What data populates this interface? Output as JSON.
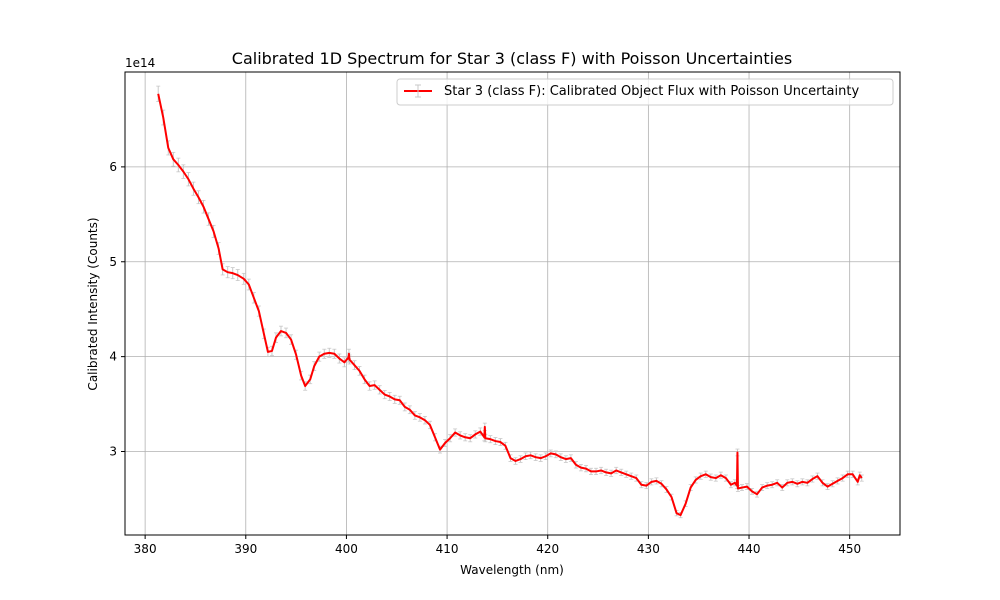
{
  "chart_data": {
    "type": "line",
    "title": "Calibrated 1D Spectrum for Star 3 (class F) with Poisson Uncertainties",
    "xlabel": "Wavelength (nm)",
    "ylabel": "Calibrated Intensity (Counts)",
    "y_offset_label": "1e14",
    "xlim": [
      378,
      455
    ],
    "ylim": [
      2.12,
      7.0
    ],
    "x_ticks": [
      380,
      390,
      400,
      410,
      420,
      430,
      440,
      450
    ],
    "y_ticks": [
      3,
      4,
      5,
      6
    ],
    "grid": true,
    "legend_position": "top-right",
    "series": [
      {
        "name": "Star 3 (class F): Calibrated Object Flux with Poisson Uncertainty",
        "color": "#ff0000",
        "errorbar_color": "#c8c8c8",
        "error_fraction": 0.012,
        "points": [
          [
            381.3,
            6.77
          ],
          [
            381.8,
            6.52
          ],
          [
            382.3,
            6.2
          ],
          [
            382.8,
            6.08
          ],
          [
            383.3,
            6.02
          ],
          [
            383.8,
            5.95
          ],
          [
            384.3,
            5.87
          ],
          [
            384.8,
            5.77
          ],
          [
            385.3,
            5.68
          ],
          [
            385.8,
            5.58
          ],
          [
            386.3,
            5.45
          ],
          [
            386.8,
            5.32
          ],
          [
            387.3,
            5.14
          ],
          [
            387.7,
            4.92
          ],
          [
            388.2,
            4.89
          ],
          [
            388.7,
            4.88
          ],
          [
            389.2,
            4.86
          ],
          [
            389.8,
            4.82
          ],
          [
            390.3,
            4.76
          ],
          [
            390.8,
            4.62
          ],
          [
            391.3,
            4.48
          ],
          [
            391.8,
            4.24
          ],
          [
            392.2,
            4.05
          ],
          [
            392.6,
            4.06
          ],
          [
            393.0,
            4.2
          ],
          [
            393.5,
            4.27
          ],
          [
            394.0,
            4.25
          ],
          [
            394.5,
            4.18
          ],
          [
            395.0,
            4.02
          ],
          [
            395.5,
            3.8
          ],
          [
            395.9,
            3.69
          ],
          [
            396.4,
            3.76
          ],
          [
            396.8,
            3.9
          ],
          [
            397.3,
            4.0
          ],
          [
            397.8,
            4.03
          ],
          [
            398.3,
            4.04
          ],
          [
            398.8,
            4.03
          ],
          [
            399.3,
            3.98
          ],
          [
            399.8,
            3.94
          ],
          [
            400.2,
            3.99
          ],
          [
            400.25,
            4.03
          ],
          [
            400.3,
            3.97
          ],
          [
            400.8,
            3.91
          ],
          [
            401.3,
            3.85
          ],
          [
            401.8,
            3.76
          ],
          [
            402.3,
            3.69
          ],
          [
            402.8,
            3.7
          ],
          [
            403.3,
            3.65
          ],
          [
            403.8,
            3.6
          ],
          [
            404.3,
            3.58
          ],
          [
            404.8,
            3.55
          ],
          [
            405.3,
            3.54
          ],
          [
            405.8,
            3.47
          ],
          [
            406.3,
            3.44
          ],
          [
            406.8,
            3.38
          ],
          [
            407.3,
            3.36
          ],
          [
            407.8,
            3.33
          ],
          [
            408.3,
            3.28
          ],
          [
            408.8,
            3.15
          ],
          [
            409.3,
            3.02
          ],
          [
            409.8,
            3.09
          ],
          [
            410.3,
            3.14
          ],
          [
            410.8,
            3.2
          ],
          [
            411.3,
            3.17
          ],
          [
            411.8,
            3.15
          ],
          [
            412.3,
            3.14
          ],
          [
            412.8,
            3.18
          ],
          [
            413.3,
            3.21
          ],
          [
            413.7,
            3.15
          ],
          [
            413.75,
            3.26
          ],
          [
            413.8,
            3.14
          ],
          [
            414.3,
            3.13
          ],
          [
            414.8,
            3.11
          ],
          [
            415.3,
            3.1
          ],
          [
            415.8,
            3.06
          ],
          [
            416.3,
            2.93
          ],
          [
            416.8,
            2.9
          ],
          [
            417.3,
            2.92
          ],
          [
            417.8,
            2.95
          ],
          [
            418.3,
            2.96
          ],
          [
            418.8,
            2.94
          ],
          [
            419.3,
            2.93
          ],
          [
            419.8,
            2.95
          ],
          [
            420.3,
            2.98
          ],
          [
            420.8,
            2.97
          ],
          [
            421.3,
            2.94
          ],
          [
            421.8,
            2.92
          ],
          [
            422.3,
            2.93
          ],
          [
            422.8,
            2.86
          ],
          [
            423.3,
            2.83
          ],
          [
            423.8,
            2.82
          ],
          [
            424.3,
            2.79
          ],
          [
            424.8,
            2.79
          ],
          [
            425.3,
            2.8
          ],
          [
            425.8,
            2.78
          ],
          [
            426.3,
            2.77
          ],
          [
            426.8,
            2.8
          ],
          [
            427.3,
            2.78
          ],
          [
            427.8,
            2.76
          ],
          [
            428.3,
            2.74
          ],
          [
            428.8,
            2.72
          ],
          [
            429.3,
            2.65
          ],
          [
            429.8,
            2.64
          ],
          [
            430.3,
            2.68
          ],
          [
            430.8,
            2.69
          ],
          [
            431.3,
            2.66
          ],
          [
            431.8,
            2.6
          ],
          [
            432.3,
            2.52
          ],
          [
            432.8,
            2.35
          ],
          [
            433.2,
            2.33
          ],
          [
            433.7,
            2.45
          ],
          [
            434.2,
            2.62
          ],
          [
            434.7,
            2.7
          ],
          [
            435.2,
            2.74
          ],
          [
            435.7,
            2.76
          ],
          [
            436.2,
            2.73
          ],
          [
            436.7,
            2.72
          ],
          [
            437.2,
            2.75
          ],
          [
            437.7,
            2.72
          ],
          [
            438.2,
            2.65
          ],
          [
            438.6,
            2.67
          ],
          [
            438.8,
            2.64
          ],
          [
            438.85,
            2.99
          ],
          [
            438.9,
            2.61
          ],
          [
            439.3,
            2.62
          ],
          [
            439.8,
            2.63
          ],
          [
            440.3,
            2.58
          ],
          [
            440.8,
            2.55
          ],
          [
            441.3,
            2.62
          ],
          [
            441.8,
            2.64
          ],
          [
            442.3,
            2.65
          ],
          [
            442.8,
            2.67
          ],
          [
            443.3,
            2.62
          ],
          [
            443.8,
            2.67
          ],
          [
            444.3,
            2.68
          ],
          [
            444.8,
            2.66
          ],
          [
            445.3,
            2.68
          ],
          [
            445.8,
            2.67
          ],
          [
            446.3,
            2.71
          ],
          [
            446.8,
            2.74
          ],
          [
            447.3,
            2.67
          ],
          [
            447.8,
            2.63
          ],
          [
            448.3,
            2.66
          ],
          [
            448.8,
            2.69
          ],
          [
            449.3,
            2.72
          ],
          [
            449.8,
            2.76
          ],
          [
            450.3,
            2.76
          ],
          [
            450.8,
            2.68
          ],
          [
            451.0,
            2.75
          ],
          [
            451.2,
            2.72
          ]
        ]
      }
    ]
  }
}
